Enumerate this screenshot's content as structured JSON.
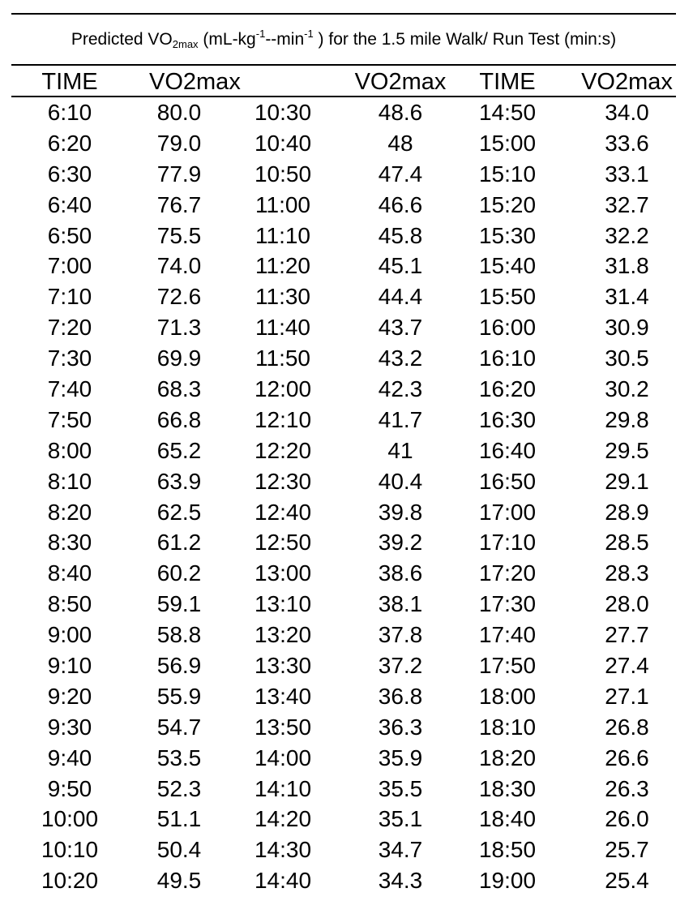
{
  "caption": {
    "prefix": "Predicted VO",
    "sub": "2max",
    "mid1": " (mL-kg",
    "sup1": "-1",
    "mid2": "--min",
    "sup2": "-1",
    "suffix": " ) for the 1.5 mile Walk/ Run Test (min:s)"
  },
  "headers": {
    "c1": "TIME",
    "c2": "VO2max",
    "c3": "",
    "c4": "VO2max",
    "c5": "TIME",
    "c6": "VO2max"
  },
  "rows": [
    [
      "6:10",
      "80.0",
      "10:30",
      "48.6",
      "14:50",
      "34.0"
    ],
    [
      "6:20",
      "79.0",
      "10:40",
      "48",
      "15:00",
      "33.6"
    ],
    [
      "6:30",
      "77.9",
      "10:50",
      "47.4",
      "15:10",
      "33.1"
    ],
    [
      "6:40",
      "76.7",
      "11:00",
      "46.6",
      "15:20",
      "32.7"
    ],
    [
      "6:50",
      "75.5",
      "11:10",
      "45.8",
      "15:30",
      "32.2"
    ],
    [
      "7:00",
      "74.0",
      "11:20",
      "45.1",
      "15:40",
      "31.8"
    ],
    [
      "7:10",
      "72.6",
      "11:30",
      "44.4",
      "15:50",
      "31.4"
    ],
    [
      "7:20",
      "71.3",
      "11:40",
      "43.7",
      "16:00",
      "30.9"
    ],
    [
      "7:30",
      "69.9",
      "11:50",
      "43.2",
      "16:10",
      "30.5"
    ],
    [
      "7:40",
      "68.3",
      "12:00",
      "42.3",
      "16:20",
      "30.2"
    ],
    [
      "7:50",
      "66.8",
      "12:10",
      "41.7",
      "16:30",
      "29.8"
    ],
    [
      "8:00",
      "65.2",
      "12:20",
      "41",
      "16:40",
      "29.5"
    ],
    [
      "8:10",
      "63.9",
      "12:30",
      "40.4",
      "16:50",
      "29.1"
    ],
    [
      "8:20",
      "62.5",
      "12:40",
      "39.8",
      "17:00",
      "28.9"
    ],
    [
      "8:30",
      "61.2",
      "12:50",
      "39.2",
      "17:10",
      "28.5"
    ],
    [
      "8:40",
      "60.2",
      "13:00",
      "38.6",
      "17:20",
      "28.3"
    ],
    [
      "8:50",
      "59.1",
      "13:10",
      "38.1",
      "17:30",
      "28.0"
    ],
    [
      "9:00",
      "58.8",
      "13:20",
      "37.8",
      "17:40",
      "27.7"
    ],
    [
      "9:10",
      "56.9",
      "13:30",
      "37.2",
      "17:50",
      "27.4"
    ],
    [
      "9:20",
      "55.9",
      "13:40",
      "36.8",
      "18:00",
      "27.1"
    ],
    [
      "9:30",
      "54.7",
      "13:50",
      "36.3",
      "18:10",
      "26.8"
    ],
    [
      "9:40",
      "53.5",
      "14:00",
      "35.9",
      "18:20",
      "26.6"
    ],
    [
      "9:50",
      "52.3",
      "14:10",
      "35.5",
      "18:30",
      "26.3"
    ],
    [
      "10:00",
      "51.1",
      "14:20",
      "35.1",
      "18:40",
      "26.0"
    ],
    [
      "10:10",
      "50.4",
      "14:30",
      "34.7",
      "18:50",
      "25.7"
    ],
    [
      "10:20",
      "49.5",
      "14:40",
      "34.3",
      "19:00",
      "25.4"
    ]
  ]
}
